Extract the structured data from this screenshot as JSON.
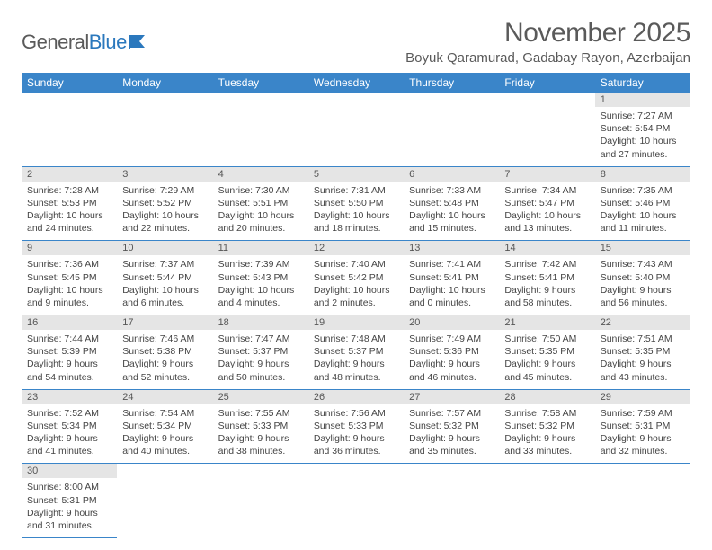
{
  "logo": {
    "part1": "General",
    "part2": "Blue"
  },
  "title": "November 2025",
  "location": "Boyuk Qaramurad, Gadabay Rayon, Azerbaijan",
  "colors": {
    "header_bg": "#3a85c9",
    "header_text": "#ffffff",
    "daynum_bg": "#e5e5e5",
    "border": "#3a85c9",
    "logo_gray": "#5a5a5a",
    "logo_blue": "#2b78bd",
    "body_text": "#444444"
  },
  "weekdays": [
    "Sunday",
    "Monday",
    "Tuesday",
    "Wednesday",
    "Thursday",
    "Friday",
    "Saturday"
  ],
  "weeks": [
    [
      null,
      null,
      null,
      null,
      null,
      null,
      {
        "n": "1",
        "sr": "7:27 AM",
        "ss": "5:54 PM",
        "dl": "10 hours and 27 minutes."
      }
    ],
    [
      {
        "n": "2",
        "sr": "7:28 AM",
        "ss": "5:53 PM",
        "dl": "10 hours and 24 minutes."
      },
      {
        "n": "3",
        "sr": "7:29 AM",
        "ss": "5:52 PM",
        "dl": "10 hours and 22 minutes."
      },
      {
        "n": "4",
        "sr": "7:30 AM",
        "ss": "5:51 PM",
        "dl": "10 hours and 20 minutes."
      },
      {
        "n": "5",
        "sr": "7:31 AM",
        "ss": "5:50 PM",
        "dl": "10 hours and 18 minutes."
      },
      {
        "n": "6",
        "sr": "7:33 AM",
        "ss": "5:48 PM",
        "dl": "10 hours and 15 minutes."
      },
      {
        "n": "7",
        "sr": "7:34 AM",
        "ss": "5:47 PM",
        "dl": "10 hours and 13 minutes."
      },
      {
        "n": "8",
        "sr": "7:35 AM",
        "ss": "5:46 PM",
        "dl": "10 hours and 11 minutes."
      }
    ],
    [
      {
        "n": "9",
        "sr": "7:36 AM",
        "ss": "5:45 PM",
        "dl": "10 hours and 9 minutes."
      },
      {
        "n": "10",
        "sr": "7:37 AM",
        "ss": "5:44 PM",
        "dl": "10 hours and 6 minutes."
      },
      {
        "n": "11",
        "sr": "7:39 AM",
        "ss": "5:43 PM",
        "dl": "10 hours and 4 minutes."
      },
      {
        "n": "12",
        "sr": "7:40 AM",
        "ss": "5:42 PM",
        "dl": "10 hours and 2 minutes."
      },
      {
        "n": "13",
        "sr": "7:41 AM",
        "ss": "5:41 PM",
        "dl": "10 hours and 0 minutes."
      },
      {
        "n": "14",
        "sr": "7:42 AM",
        "ss": "5:41 PM",
        "dl": "9 hours and 58 minutes."
      },
      {
        "n": "15",
        "sr": "7:43 AM",
        "ss": "5:40 PM",
        "dl": "9 hours and 56 minutes."
      }
    ],
    [
      {
        "n": "16",
        "sr": "7:44 AM",
        "ss": "5:39 PM",
        "dl": "9 hours and 54 minutes."
      },
      {
        "n": "17",
        "sr": "7:46 AM",
        "ss": "5:38 PM",
        "dl": "9 hours and 52 minutes."
      },
      {
        "n": "18",
        "sr": "7:47 AM",
        "ss": "5:37 PM",
        "dl": "9 hours and 50 minutes."
      },
      {
        "n": "19",
        "sr": "7:48 AM",
        "ss": "5:37 PM",
        "dl": "9 hours and 48 minutes."
      },
      {
        "n": "20",
        "sr": "7:49 AM",
        "ss": "5:36 PM",
        "dl": "9 hours and 46 minutes."
      },
      {
        "n": "21",
        "sr": "7:50 AM",
        "ss": "5:35 PM",
        "dl": "9 hours and 45 minutes."
      },
      {
        "n": "22",
        "sr": "7:51 AM",
        "ss": "5:35 PM",
        "dl": "9 hours and 43 minutes."
      }
    ],
    [
      {
        "n": "23",
        "sr": "7:52 AM",
        "ss": "5:34 PM",
        "dl": "9 hours and 41 minutes."
      },
      {
        "n": "24",
        "sr": "7:54 AM",
        "ss": "5:34 PM",
        "dl": "9 hours and 40 minutes."
      },
      {
        "n": "25",
        "sr": "7:55 AM",
        "ss": "5:33 PM",
        "dl": "9 hours and 38 minutes."
      },
      {
        "n": "26",
        "sr": "7:56 AM",
        "ss": "5:33 PM",
        "dl": "9 hours and 36 minutes."
      },
      {
        "n": "27",
        "sr": "7:57 AM",
        "ss": "5:32 PM",
        "dl": "9 hours and 35 minutes."
      },
      {
        "n": "28",
        "sr": "7:58 AM",
        "ss": "5:32 PM",
        "dl": "9 hours and 33 minutes."
      },
      {
        "n": "29",
        "sr": "7:59 AM",
        "ss": "5:31 PM",
        "dl": "9 hours and 32 minutes."
      }
    ],
    [
      {
        "n": "30",
        "sr": "8:00 AM",
        "ss": "5:31 PM",
        "dl": "9 hours and 31 minutes."
      },
      null,
      null,
      null,
      null,
      null,
      null
    ]
  ],
  "labels": {
    "sunrise": "Sunrise: ",
    "sunset": "Sunset: ",
    "daylight": "Daylight: "
  }
}
